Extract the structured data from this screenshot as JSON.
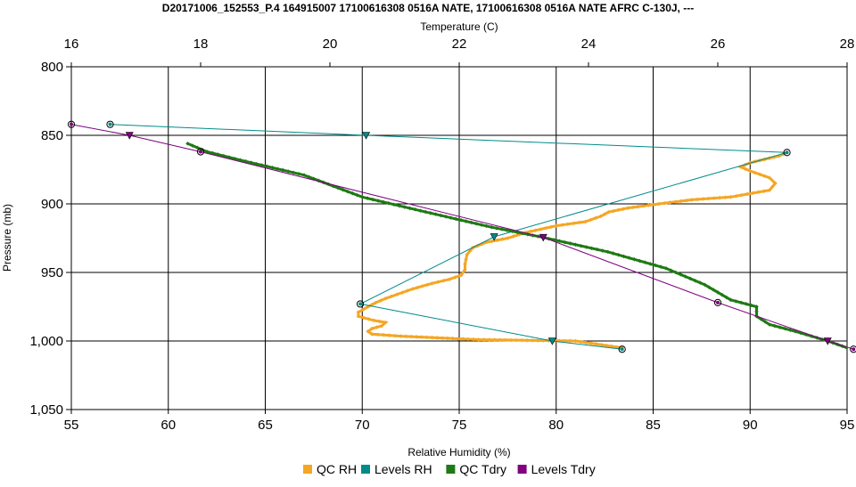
{
  "chart_data": {
    "type": "line",
    "title": "D20171006_152553_P.4 164915007 17100616308 0516A NATE, 17100616308 0516A NATE AFRC C-130J, ---",
    "x_top": {
      "label": "Temperature (C)",
      "range": [
        16,
        28
      ],
      "ticks": [
        "16",
        "18",
        "20",
        "22",
        "24",
        "26",
        "28"
      ]
    },
    "x_bottom": {
      "label": "Relative Humidity (%)",
      "range": [
        55,
        95
      ],
      "ticks": [
        "55",
        "60",
        "65",
        "70",
        "75",
        "80",
        "85",
        "90",
        "95"
      ]
    },
    "y": {
      "label": "Pressure (mb)",
      "range": [
        800,
        1050
      ],
      "inverted": true,
      "ticks": [
        "800",
        "850",
        "900",
        "950",
        "1,000",
        "1,050"
      ]
    },
    "grid": true,
    "legend_position": "bottom",
    "colors": {
      "qc_rh": "#f5a623",
      "levels_rh": "#008b8b",
      "qc_tdry": "#1e7a14",
      "levels_tdry": "#800080"
    },
    "series": [
      {
        "name": "QC RH",
        "axis": "rh",
        "points": [
          [
            83.4,
            1005
          ],
          [
            81,
            1000
          ],
          [
            76,
            999
          ],
          [
            72,
            996.5
          ],
          [
            70.5,
            995
          ],
          [
            70.3,
            993
          ],
          [
            70.5,
            991
          ],
          [
            71,
            989
          ],
          [
            71.2,
            986.5
          ],
          [
            70.6,
            985
          ],
          [
            69.8,
            982
          ],
          [
            69.8,
            979
          ],
          [
            70.3,
            975
          ],
          [
            70.7,
            972
          ],
          [
            71.2,
            969
          ],
          [
            71.8,
            966
          ],
          [
            72.6,
            962
          ],
          [
            73.6,
            958
          ],
          [
            74.5,
            955
          ],
          [
            75.1,
            952
          ],
          [
            75.3,
            948
          ],
          [
            75.3,
            944
          ],
          [
            75.4,
            937
          ],
          [
            75.7,
            932
          ],
          [
            76.4,
            928
          ],
          [
            77.5,
            925
          ],
          [
            78.4,
            921
          ],
          [
            80,
            916
          ],
          [
            81.5,
            913
          ],
          [
            82.3,
            909
          ],
          [
            82.7,
            906
          ],
          [
            83.7,
            903
          ],
          [
            85.3,
            900
          ],
          [
            87,
            897
          ],
          [
            89,
            895
          ],
          [
            91,
            890
          ],
          [
            91.3,
            885
          ],
          [
            91,
            881
          ],
          [
            90,
            876
          ],
          [
            89.5,
            873
          ],
          [
            90,
            870
          ],
          [
            91.5,
            865
          ],
          [
            91.9,
            862.5
          ]
        ]
      },
      {
        "name": "Levels RH",
        "axis": "rh",
        "points": [
          [
            57,
            842
          ],
          [
            70.2,
            850
          ],
          [
            91.9,
            862.5
          ],
          [
            76.8,
            924
          ],
          [
            69.9,
            973
          ],
          [
            79.8,
            1000
          ],
          [
            83.4,
            1006
          ]
        ]
      },
      {
        "name": "QC Tdry",
        "axis": "temp",
        "points": [
          [
            17.8,
            856
          ],
          [
            18.1,
            862
          ],
          [
            18.7,
            869
          ],
          [
            19.6,
            879
          ],
          [
            20.5,
            895
          ],
          [
            21.4,
            905
          ],
          [
            22.5,
            917
          ],
          [
            23.3,
            924.5
          ],
          [
            24.3,
            935
          ],
          [
            25.2,
            947
          ],
          [
            25.8,
            959
          ],
          [
            26.2,
            970
          ],
          [
            26.6,
            975
          ],
          [
            26.6,
            982
          ],
          [
            26.8,
            988
          ],
          [
            27.2,
            993
          ],
          [
            27.7,
            1000
          ],
          [
            28.0,
            1005
          ]
        ]
      },
      {
        "name": "Levels Tdry",
        "axis": "temp",
        "points": [
          [
            16.0,
            842
          ],
          [
            16.9,
            850
          ],
          [
            18.0,
            862
          ],
          [
            23.3,
            924.5
          ],
          [
            26.0,
            972
          ],
          [
            27.7,
            1000
          ],
          [
            28.1,
            1006
          ]
        ]
      }
    ]
  }
}
